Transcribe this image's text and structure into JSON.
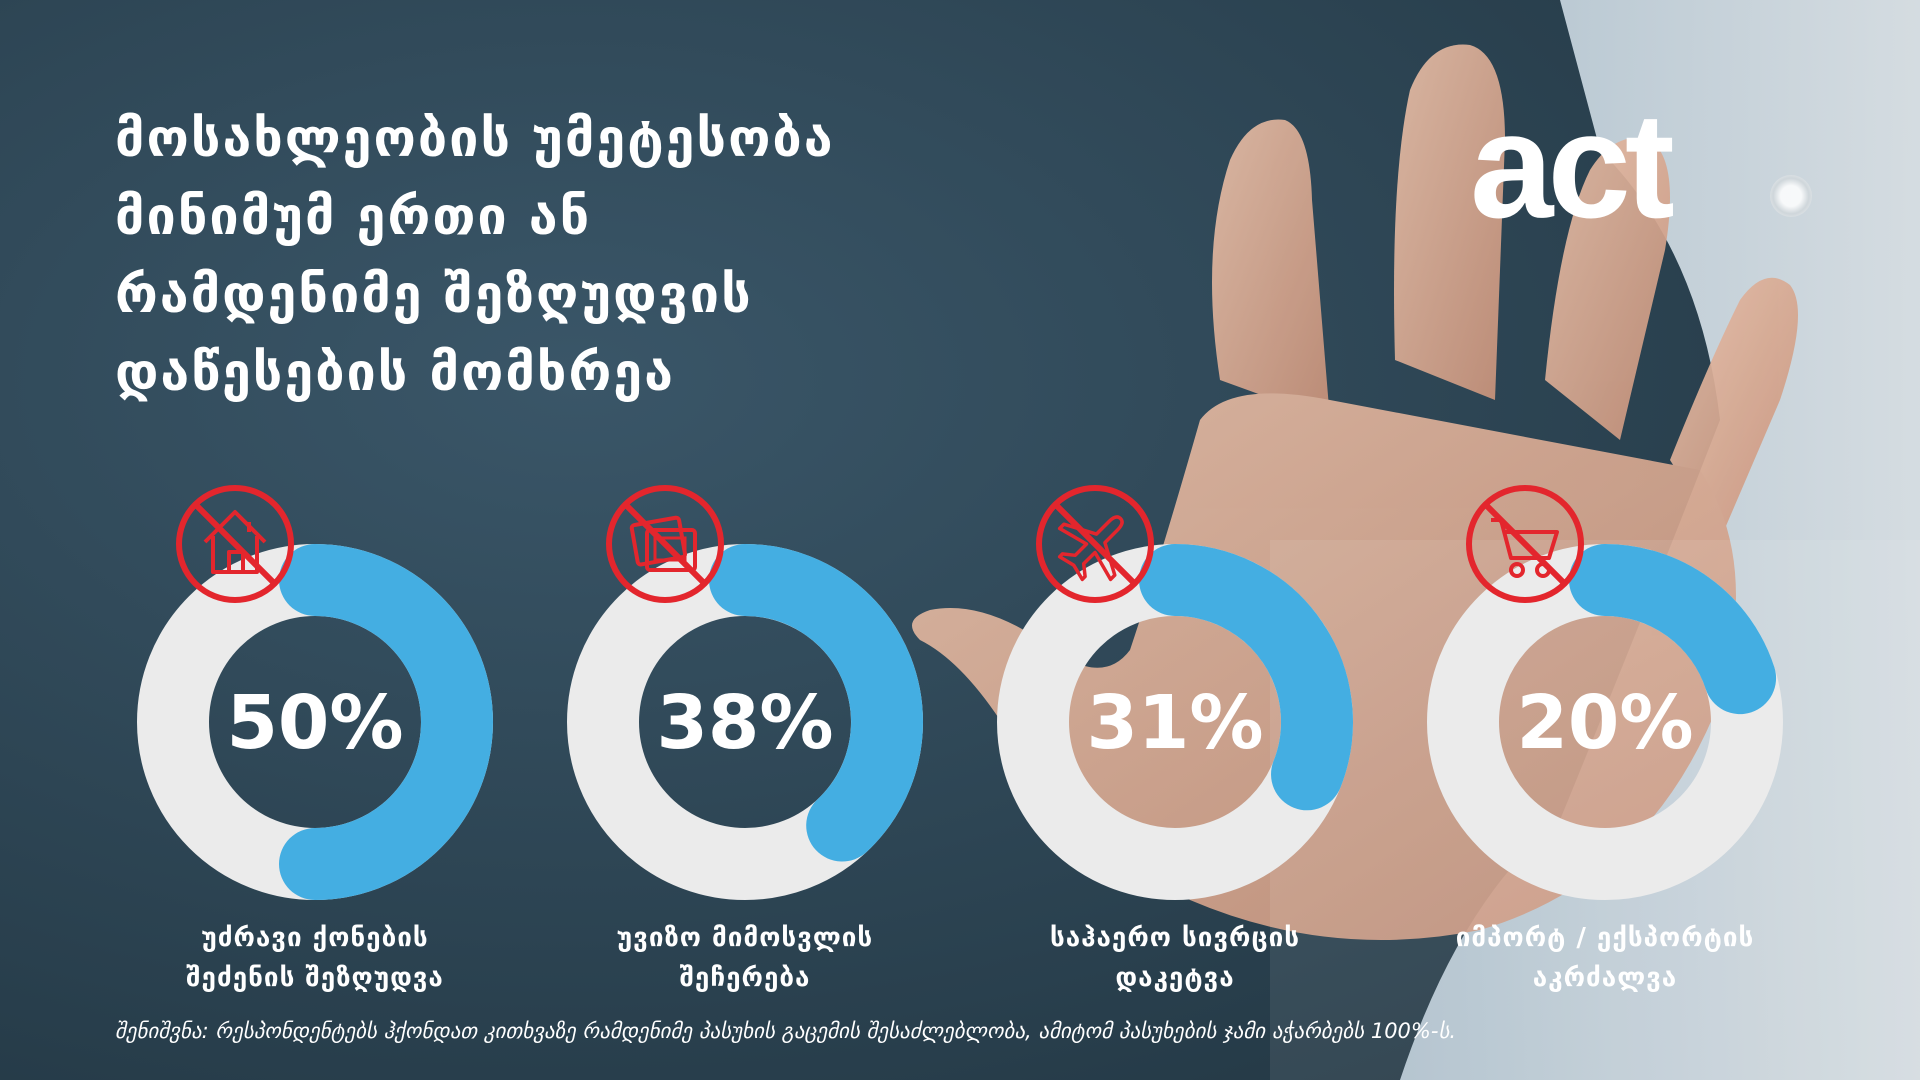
{
  "title_lines": [
    "მოსახლეობის უმეტესობა",
    "მინიმუმ ერთი ან",
    "რამდენიმე შეზღუდვის",
    "დაწესების მომხრეა"
  ],
  "logo": "act",
  "colors": {
    "background": "#2f4a5a",
    "ring_track": "#ebebeb",
    "ring_fill": "#44aee2",
    "prohibition": "#e3262d",
    "text": "#ffffff"
  },
  "chart_data": {
    "type": "donut",
    "unit": "%",
    "max": 100,
    "items": [
      {
        "value": 50,
        "display": "50%",
        "label_lines": [
          "უძრავი ქონების",
          "შეძენის შეზღუდვა"
        ],
        "icon": "house-icon"
      },
      {
        "value": 38,
        "display": "38%",
        "label_lines": [
          "უვიზო მიმოსვლის",
          "შეჩერება"
        ],
        "icon": "passport-icon"
      },
      {
        "value": 31,
        "display": "31%",
        "label_lines": [
          "საჰაერო სივრცის",
          "დაკეტვა"
        ],
        "icon": "airplane-icon"
      },
      {
        "value": 20,
        "display": "20%",
        "label_lines": [
          "იმპორტ / ექსპორტის",
          "აკრძალვა"
        ],
        "icon": "shopping-cart-icon"
      }
    ]
  },
  "note": "შენიშვნა: რესპონდენტებს ჰქონდათ კითხვაზე  რამდენიმე პასუხის გაცემის შესაძლებლობა, ამიტომ პასუხების ჯამი აჭარბებს 100%-ს."
}
